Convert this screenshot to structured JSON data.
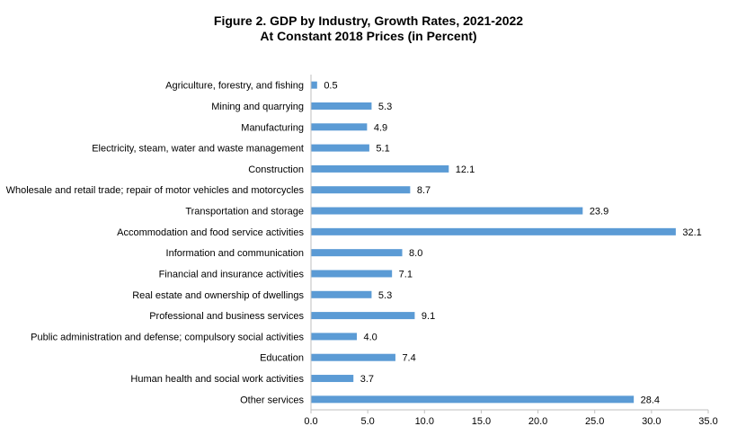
{
  "chart_data": {
    "type": "bar",
    "orientation": "horizontal",
    "title": "Figure 2. GDP by Industry, Growth Rates, 2021-2022",
    "subtitle": "At Constant 2018 Prices (in Percent)",
    "xlabel": "",
    "ylabel": "",
    "xlim": [
      0,
      35
    ],
    "ticks": [
      "0.0",
      "5.0",
      "10.0",
      "15.0",
      "20.0",
      "25.0",
      "30.0",
      "35.0"
    ],
    "tick_values": [
      0,
      5,
      10,
      15,
      20,
      25,
      30,
      35
    ],
    "grid": false,
    "legend": "none",
    "bar_color": "#5b9bd5",
    "categories": [
      "Agriculture, forestry, and fishing",
      "Mining and quarrying",
      "Manufacturing",
      "Electricity, steam, water and waste management",
      "Construction",
      "Wholesale and retail trade; repair of motor vehicles and motorcycles",
      "Transportation and storage",
      "Accommodation and food service activities",
      "Information and communication",
      "Financial and insurance activities",
      "Real estate and ownership of dwellings",
      "Professional and business services",
      "Public administration and defense; compulsory social activities",
      "Education",
      "Human health and social work activities",
      "Other services"
    ],
    "values": [
      0.5,
      5.3,
      4.9,
      5.1,
      12.1,
      8.7,
      23.9,
      32.1,
      8.0,
      7.1,
      5.3,
      9.1,
      4.0,
      7.4,
      3.7,
      28.4
    ],
    "value_labels": [
      "0.5",
      "5.3",
      "4.9",
      "5.1",
      "12.1",
      "8.7",
      "23.9",
      "32.1",
      "8.0",
      "7.1",
      "5.3",
      "9.1",
      "4.0",
      "7.4",
      "3.7",
      "28.4"
    ]
  }
}
